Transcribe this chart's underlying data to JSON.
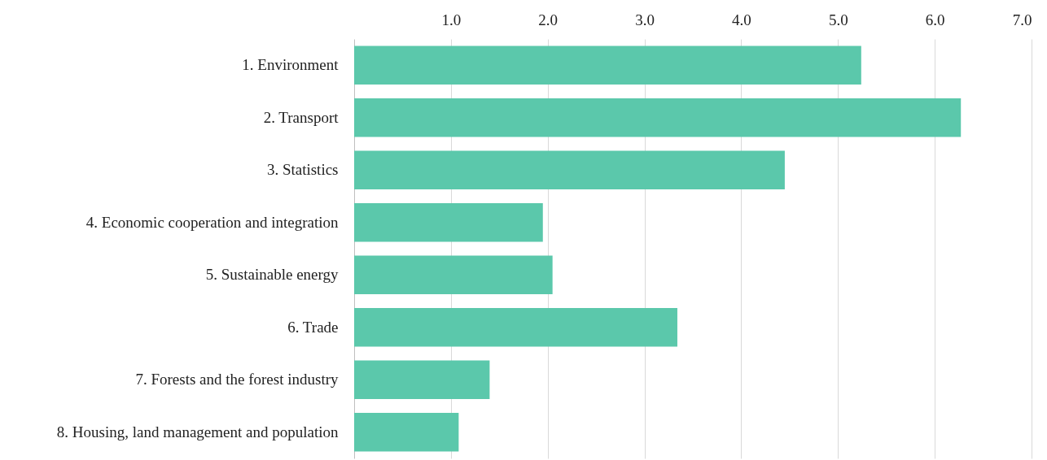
{
  "chart_data": {
    "type": "bar",
    "orientation": "horizontal",
    "categories": [
      "1. Environment",
      "2. Transport",
      "3. Statistics",
      "4. Economic cooperation and integration",
      "5. Sustainable energy",
      "6. Trade",
      "7. Forests and the forest industry",
      "8. Housing, land management and population"
    ],
    "values": [
      5.24,
      6.27,
      4.45,
      1.95,
      2.05,
      3.34,
      1.4,
      1.08
    ],
    "color": "#5bc8ab",
    "xlim": [
      0,
      7
    ],
    "xticks": [
      {
        "value": 1,
        "label": "1.0"
      },
      {
        "value": 2,
        "label": "2.0"
      },
      {
        "value": 3,
        "label": "3.0"
      },
      {
        "value": 4,
        "label": "4.0"
      },
      {
        "value": 5,
        "label": "5.0"
      },
      {
        "value": 6,
        "label": "6.0"
      },
      {
        "value": 7,
        "label": "7.0"
      }
    ],
    "grid": "x"
  }
}
